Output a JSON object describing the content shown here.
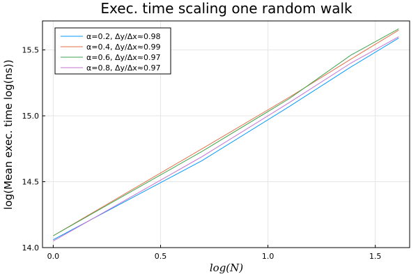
{
  "chart_data": {
    "type": "line",
    "title": "Exec. time scaling one random walk",
    "xlabel": "log(N)",
    "ylabel": "log(Mean exec. time log(ns))",
    "xlim": [
      -0.05,
      1.66
    ],
    "ylim": [
      14.0,
      15.72
    ],
    "xticks": [
      0.0,
      0.5,
      1.0,
      1.5
    ],
    "xtick_labels": [
      "0.0",
      "0.5",
      "1.0",
      "1.5"
    ],
    "yticks": [
      14.0,
      14.5,
      15.0,
      15.5
    ],
    "ytick_labels": [
      "14.0",
      "14.5",
      "15.0",
      "15.5"
    ],
    "grid": true,
    "legend_position": "top-left",
    "x": [
      0.0,
      0.693,
      1.099,
      1.386,
      1.609
    ],
    "series": [
      {
        "name": "α=0.2, Δy/Δx≈0.98",
        "color": "#009AFA",
        "values": [
          14.06,
          14.66,
          15.07,
          15.37,
          15.59
        ]
      },
      {
        "name": "α=0.4, Δy/Δx≈0.99",
        "color": "#E36F47",
        "values": [
          14.09,
          14.75,
          15.14,
          15.43,
          15.65
        ]
      },
      {
        "name": "α=0.6, Δy/Δx≈0.97",
        "color": "#3EA44E",
        "values": [
          14.09,
          14.73,
          15.13,
          15.46,
          15.66
        ]
      },
      {
        "name": "α=0.8, Δy/Δx≈0.97",
        "color": "#C371D2",
        "values": [
          14.05,
          14.69,
          15.1,
          15.4,
          15.6
        ]
      }
    ]
  }
}
